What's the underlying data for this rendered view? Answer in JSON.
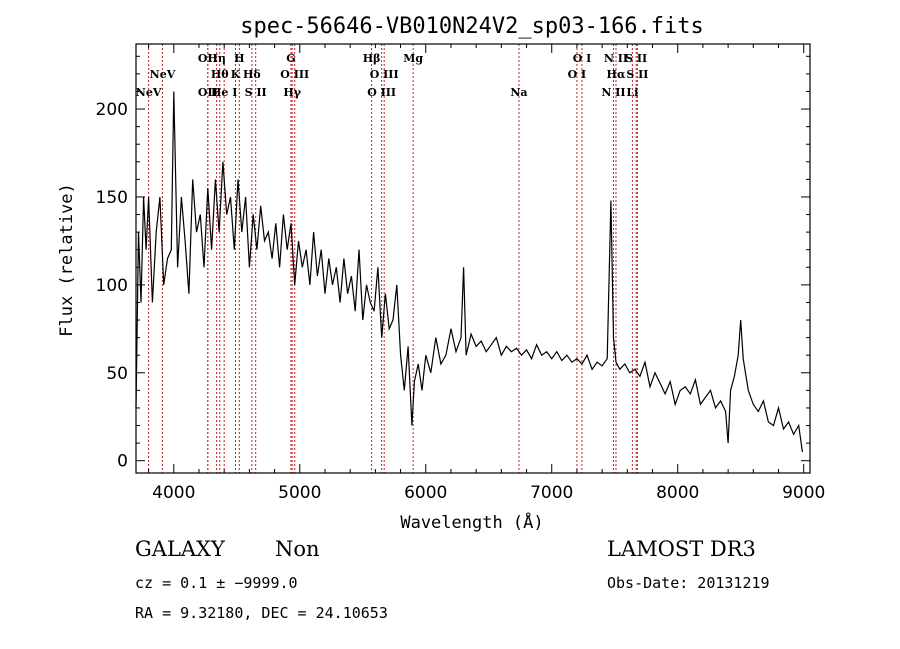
{
  "chart_data": {
    "type": "line",
    "title": "spec-56646-VB010N24V2_sp03-166.fits",
    "xlabel": "Wavelength (Å)",
    "ylabel": "Flux (relative)",
    "xlim": [
      3700,
      9050
    ],
    "ylim": [
      -7,
      237
    ],
    "xticks": [
      4000,
      5000,
      6000,
      7000,
      8000,
      9000
    ],
    "yticks": [
      0,
      50,
      100,
      150,
      200
    ],
    "series": [
      {
        "values_x": [
          3700,
          3720,
          3740,
          3760,
          3780,
          3800,
          3830,
          3860,
          3890,
          3920,
          3950,
          3980,
          4000,
          4030,
          4060,
          4090,
          4120,
          4150,
          4180,
          4210,
          4240,
          4270,
          4300,
          4330,
          4360,
          4390,
          4420,
          4450,
          4480,
          4510,
          4540,
          4570,
          4600,
          4630,
          4660,
          4690,
          4720,
          4750,
          4780,
          4810,
          4840,
          4870,
          4900,
          4930,
          4960,
          4990,
          5020,
          5050,
          5080,
          5110,
          5140,
          5170,
          5200,
          5230,
          5260,
          5290,
          5320,
          5350,
          5380,
          5410,
          5440,
          5470,
          5500,
          5530,
          5560,
          5590,
          5620,
          5650,
          5680,
          5710,
          5740,
          5770,
          5800,
          5830,
          5860,
          5890,
          5910,
          5940,
          5970,
          6000,
          6040,
          6080,
          6120,
          6160,
          6200,
          6240,
          6280,
          6300,
          6320,
          6360,
          6400,
          6440,
          6480,
          6520,
          6560,
          6600,
          6640,
          6680,
          6720,
          6760,
          6800,
          6840,
          6880,
          6920,
          6960,
          7000,
          7040,
          7080,
          7120,
          7160,
          7200,
          7240,
          7280,
          7320,
          7360,
          7400,
          7440,
          7470,
          7490,
          7510,
          7540,
          7580,
          7620,
          7660,
          7700,
          7740,
          7780,
          7820,
          7860,
          7900,
          7940,
          7980,
          8020,
          8060,
          8100,
          8140,
          8180,
          8220,
          8260,
          8300,
          8340,
          8380,
          8400,
          8420,
          8450,
          8480,
          8500,
          8520,
          8560,
          8600,
          8640,
          8680,
          8720,
          8760,
          8800,
          8840,
          8880,
          8920,
          8960,
          8990
        ],
        "values_y": [
          30,
          130,
          90,
          150,
          120,
          150,
          90,
          130,
          150,
          100,
          115,
          120,
          210,
          110,
          150,
          125,
          95,
          160,
          130,
          140,
          110,
          155,
          120,
          160,
          130,
          170,
          140,
          150,
          120,
          160,
          130,
          150,
          110,
          140,
          120,
          145,
          125,
          130,
          115,
          135,
          110,
          140,
          120,
          135,
          100,
          125,
          110,
          120,
          100,
          130,
          105,
          120,
          95,
          115,
          100,
          110,
          90,
          115,
          95,
          105,
          85,
          120,
          80,
          100,
          90,
          85,
          110,
          70,
          95,
          75,
          80,
          100,
          60,
          40,
          65,
          20,
          45,
          55,
          40,
          60,
          50,
          70,
          55,
          60,
          75,
          62,
          70,
          110,
          60,
          72,
          65,
          68,
          62,
          66,
          70,
          60,
          65,
          62,
          64,
          60,
          63,
          58,
          66,
          60,
          62,
          58,
          62,
          57,
          60,
          56,
          58,
          55,
          60,
          52,
          56,
          54,
          58,
          148,
          70,
          56,
          52,
          55,
          50,
          52,
          48,
          56,
          42,
          50,
          44,
          38,
          45,
          32,
          40,
          42,
          38,
          46,
          32,
          36,
          40,
          30,
          34,
          28,
          10,
          40,
          48,
          60,
          80,
          58,
          40,
          32,
          28,
          34,
          22,
          20,
          30,
          18,
          22,
          15,
          20,
          5
        ]
      }
    ],
    "lines": [
      {
        "name": "NeV",
        "x": 3800,
        "row": 3
      },
      {
        "name": "NeV",
        "x": 3910,
        "row": 2
      },
      {
        "name": "OII",
        "x": 4270,
        "row": 1
      },
      {
        "name": "OII",
        "x": 4270,
        "row": 3
      },
      {
        "name": "Hη",
        "x": 4340,
        "row": 1
      },
      {
        "name": "Hθ",
        "x": 4365,
        "row": 2
      },
      {
        "name": "H",
        "x": 4520,
        "row": 1
      },
      {
        "name": "He I",
        "x": 4400,
        "row": 3
      },
      {
        "name": "K",
        "x": 4490,
        "row": 2
      },
      {
        "name": "Hδ",
        "x": 4620,
        "row": 2
      },
      {
        "name": "S II",
        "x": 4650,
        "row": 3
      },
      {
        "name": "G",
        "x": 4930,
        "row": 1
      },
      {
        "name": "O III",
        "x": 4960,
        "row": 2
      },
      {
        "name": "Hγ",
        "x": 4940,
        "row": 3
      },
      {
        "name": "Hβ",
        "x": 5570,
        "row": 1
      },
      {
        "name": "O III",
        "x": 5670,
        "row": 2
      },
      {
        "name": "O III",
        "x": 5650,
        "row": 3
      },
      {
        "name": "Mg",
        "x": 5900,
        "row": 1
      },
      {
        "name": "Na",
        "x": 6740,
        "row": 3
      },
      {
        "name": "O I",
        "x": 7240,
        "row": 1
      },
      {
        "name": "O I",
        "x": 7200,
        "row": 2
      },
      {
        "name": "N II",
        "x": 7510,
        "row": 1
      },
      {
        "name": "Hα",
        "x": 7510,
        "row": 2
      },
      {
        "name": "N II",
        "x": 7490,
        "row": 3
      },
      {
        "name": "S II",
        "x": 7670,
        "row": 1
      },
      {
        "name": "S II",
        "x": 7680,
        "row": 2
      },
      {
        "name": "Li",
        "x": 7640,
        "row": 3
      }
    ],
    "line_color": "#c02020",
    "grid": false
  },
  "info": {
    "object_class": "GALAXY",
    "subclass": "Non",
    "survey": "LAMOST DR3",
    "redshift_line": "cz = 0.1 ± −9999.0",
    "obs_date": "Obs-Date: 20131219",
    "coords": "RA =    9.32180, DEC =   24.10653"
  }
}
